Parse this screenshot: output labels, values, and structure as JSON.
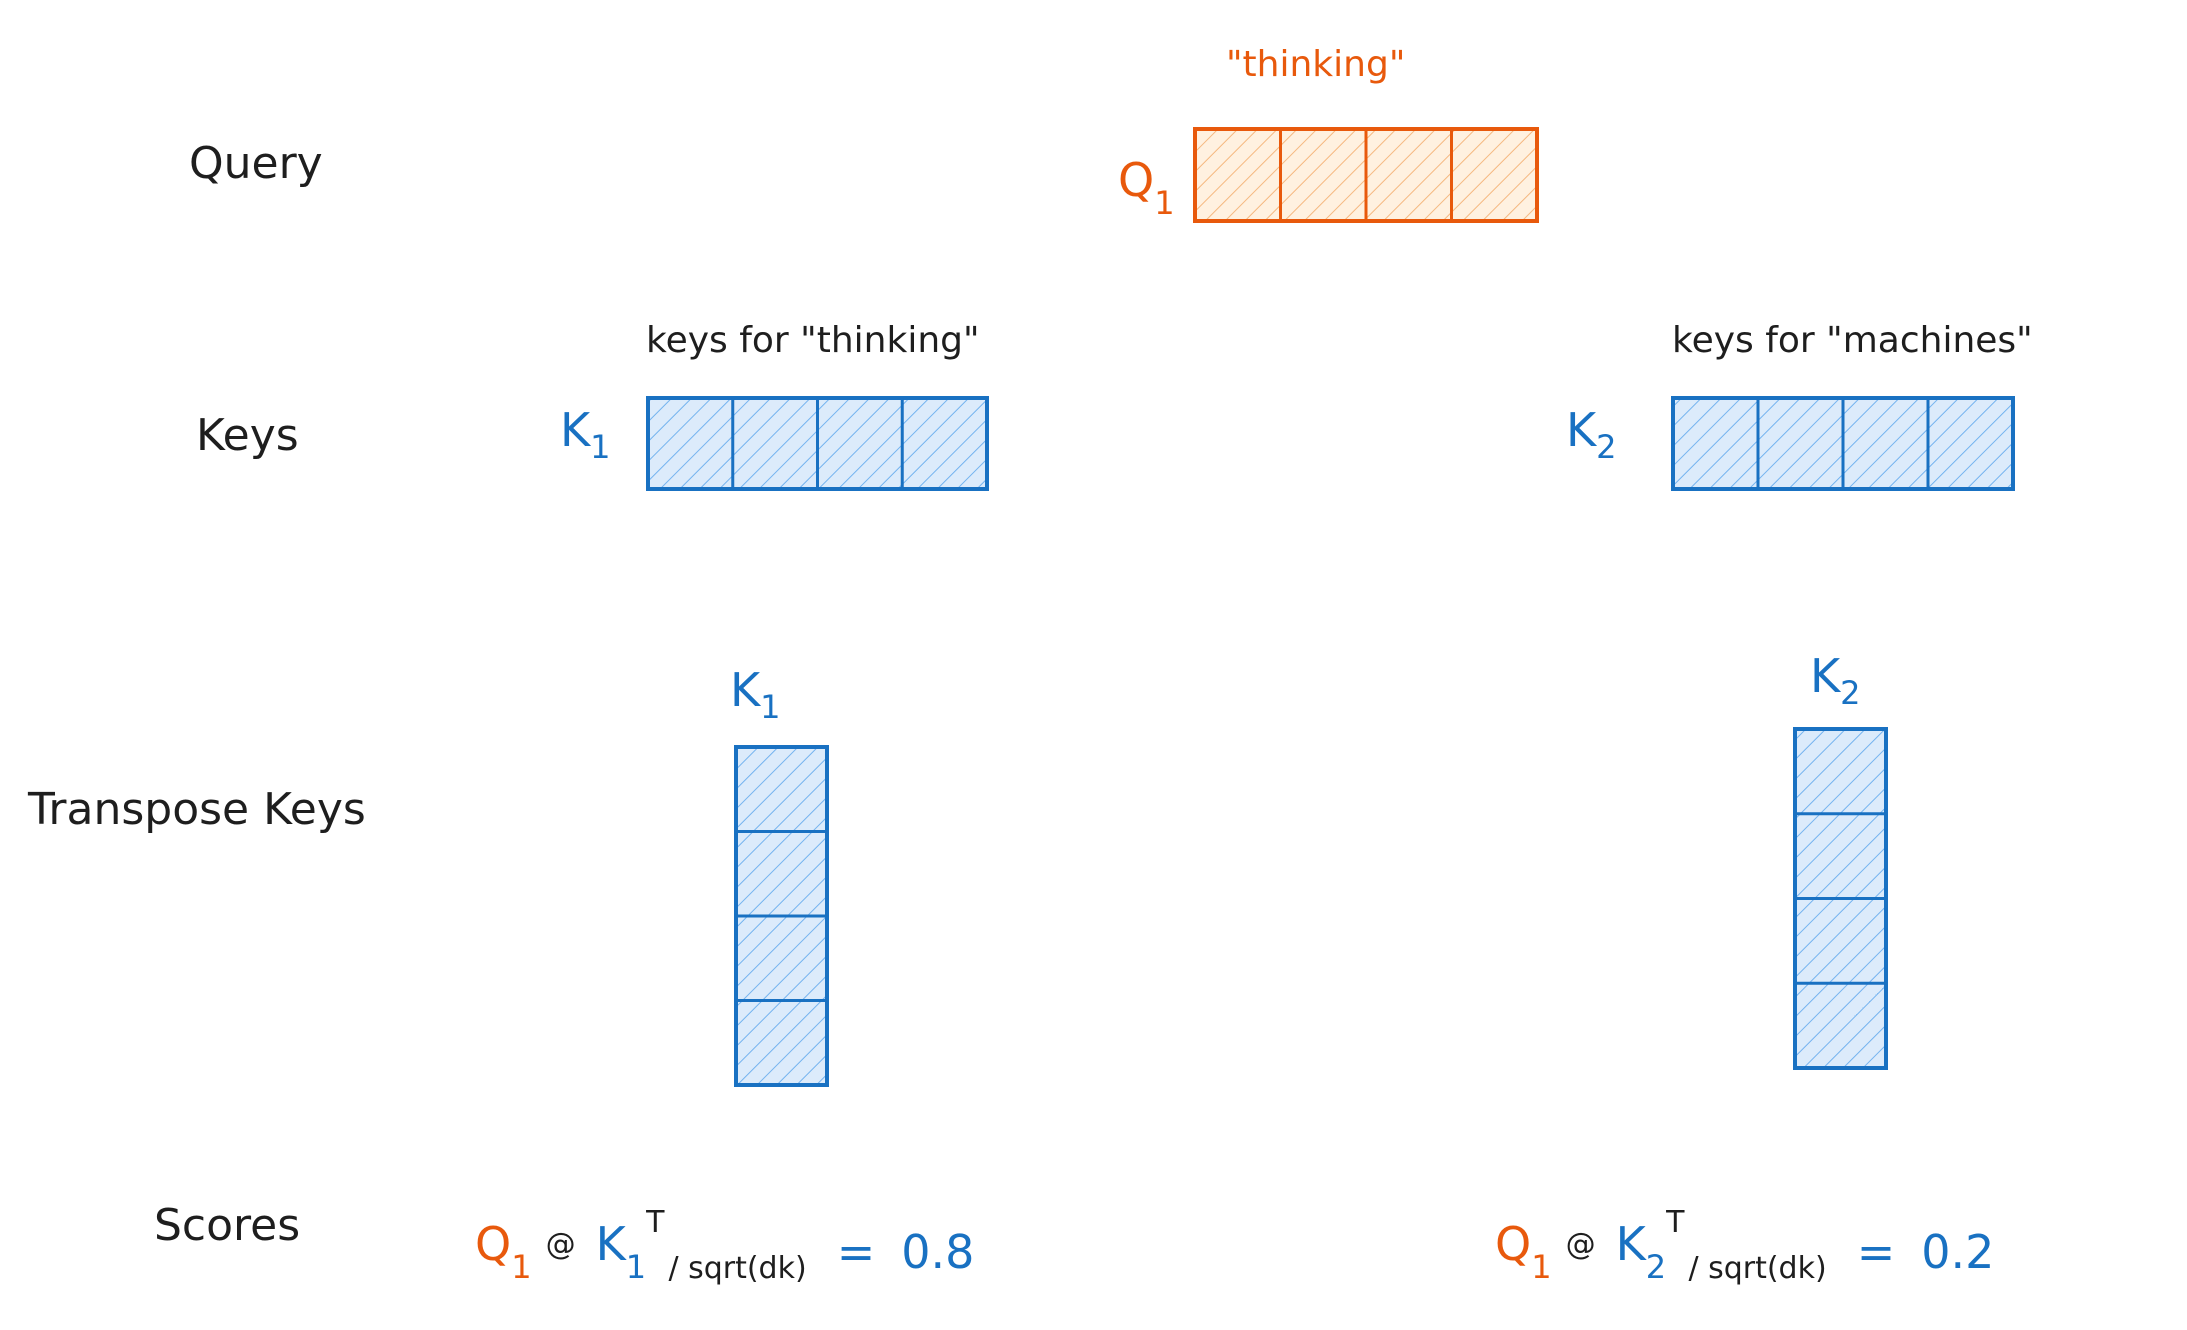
{
  "row_labels": [
    "Query",
    "Keys",
    "Transpose Keys",
    "Scores"
  ],
  "query": {
    "caption": "\"thinking\"",
    "symbol": "Q",
    "subscript": "1"
  },
  "keys": [
    {
      "caption": "keys for \"thinking\"",
      "symbol": "K",
      "subscript": "1"
    },
    {
      "caption": "keys for \"machines\"",
      "symbol": "K",
      "subscript": "2"
    }
  ],
  "transposed": [
    {
      "symbol": "K",
      "subscript": "1"
    },
    {
      "symbol": "K",
      "subscript": "2"
    }
  ],
  "scores": [
    {
      "query_symbol": "Q",
      "query_subscript": "1",
      "operator": "@",
      "key_symbol": "K",
      "key_subscript": "1",
      "transpose": "T",
      "divisor": "/ sqrt(dk)",
      "equals": "=",
      "value": 0.8
    },
    {
      "query_symbol": "Q",
      "query_subscript": "1",
      "operator": "@",
      "key_symbol": "K",
      "key_subscript": "2",
      "transpose": "T",
      "divisor": "/ sqrt(dk)",
      "equals": "=",
      "value": 0.2
    }
  ]
}
